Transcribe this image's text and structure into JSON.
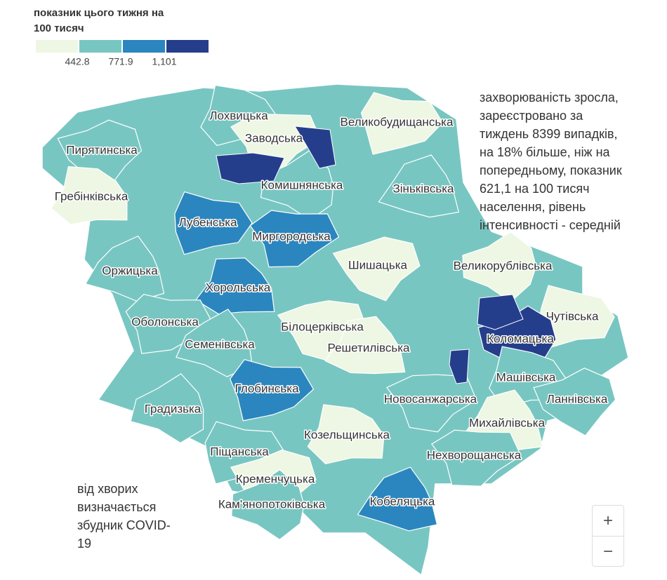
{
  "legend": {
    "title": [
      "показник цього тижня на",
      "100 тисяч"
    ],
    "colors": [
      "#eef7e4",
      "#78c6c2",
      "#2b86bf",
      "#253e8c"
    ],
    "ticks": [
      442.8,
      771.9,
      {
        "value": 1101,
        "label": "1,101"
      }
    ]
  },
  "regions": [
    {
      "name": "Лохвицька",
      "color": "#78c6c2"
    },
    {
      "name": "Великобудищанська",
      "color": "#eef7e4"
    },
    {
      "name": "Заводська",
      "color": "#eef7e4"
    },
    {
      "name": "Пирятинська",
      "color": "#78c6c2"
    },
    {
      "name": "Комишнянська",
      "color": "#78c6c2"
    },
    {
      "name": "Зіньківська",
      "color": "#78c6c2"
    },
    {
      "name": "Гребінківська",
      "color": "#eef7e4"
    },
    {
      "name": "Лубенська",
      "color": "#2b86bf"
    },
    {
      "name": "Миргородська",
      "color": "#2b86bf"
    },
    {
      "name": "Шишацька",
      "color": "#eef7e4"
    },
    {
      "name": "Великорублівська",
      "color": "#eef7e4"
    },
    {
      "name": "Оржицька",
      "color": "#78c6c2"
    },
    {
      "name": "Хорольська",
      "color": "#2b86bf"
    },
    {
      "name": "Чутівська",
      "color": "#eef7e4"
    },
    {
      "name": "Оболонська",
      "color": "#78c6c2"
    },
    {
      "name": "Білоцерківська",
      "color": "#eef7e4"
    },
    {
      "name": "Коломацька",
      "color": "#253e8c"
    },
    {
      "name": "Семенівська",
      "color": "#78c6c2"
    },
    {
      "name": "Решетилівська",
      "color": "#eef7e4"
    },
    {
      "name": "Машівська",
      "color": "#78c6c2"
    },
    {
      "name": "Глобинська",
      "color": "#2b86bf"
    },
    {
      "name": "Новосанжарська",
      "color": "#78c6c2"
    },
    {
      "name": "Ланнівська",
      "color": "#78c6c2"
    },
    {
      "name": "Градизька",
      "color": "#78c6c2"
    },
    {
      "name": "Михайлівська",
      "color": "#eef7e4"
    },
    {
      "name": "Козельщинська",
      "color": "#eef7e4"
    },
    {
      "name": "Піщанська",
      "color": "#78c6c2"
    },
    {
      "name": "Нехворощанська",
      "color": "#78c6c2"
    },
    {
      "name": "Кременчуцька",
      "color": "#eef7e4"
    },
    {
      "name": "Кам'янопотоківська",
      "color": "#78c6c2"
    },
    {
      "name": "Кобеляцька",
      "color": "#2b86bf"
    }
  ],
  "annotation": [
    "захворюваність зросла,",
    "зареєстровано за",
    "тиждень 8399 випадків,",
    "на 18% більше, ніж на",
    "попередньому, показник",
    "621,1 на 100 тисяч",
    "населення, рівень",
    "інтенсивності - середній"
  ],
  "footnote": [
    "від хворих",
    "визначається",
    "збудник COVID-",
    "19"
  ],
  "zoom": [
    "+",
    "−"
  ]
}
